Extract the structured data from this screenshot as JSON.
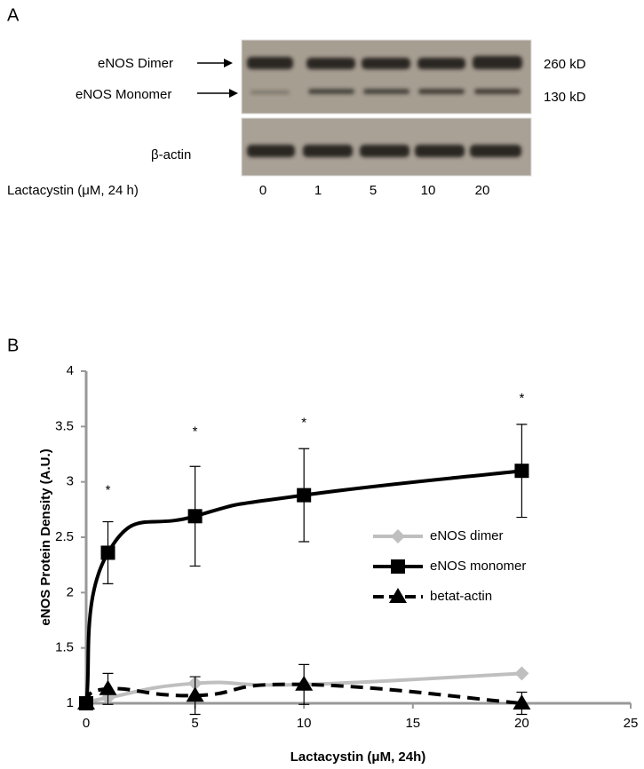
{
  "panel_a": {
    "letter": "A",
    "band_labels": [
      "eNOS Dimer",
      "eNOS Monomer",
      "β-actin"
    ],
    "sizes": [
      "260 kD",
      "130 kD"
    ],
    "treatment_label": "Lactacystin (μM, 24 h)",
    "lanes": [
      "0",
      "1",
      "5",
      "10",
      "20"
    ]
  },
  "chart_data": {
    "type": "line",
    "letter": "B",
    "xlabel": "Lactacystin  (μM, 24h)",
    "ylabel": "eNOS Protein Density (A.U.)",
    "x": [
      0,
      1,
      5,
      10,
      20
    ],
    "series": [
      {
        "name": "eNOS dimer",
        "color": "#bfbfbf",
        "marker": "diamond",
        "dash": false,
        "values": [
          1,
          1.05,
          1.18,
          1.17,
          1.27
        ]
      },
      {
        "name": "eNOS monomer",
        "color": "#000000",
        "marker": "square",
        "dash": false,
        "values": [
          1,
          2.36,
          2.69,
          2.88,
          3.1
        ],
        "errors": [
          0,
          0.28,
          0.45,
          0.42,
          0.42
        ]
      },
      {
        "name": "betat-actin",
        "color": "#000000",
        "marker": "triangle",
        "dash": true,
        "values": [
          1,
          1.13,
          1.07,
          1.17,
          1.0
        ],
        "errors": [
          0,
          0.14,
          0.17,
          0.18,
          0.1
        ]
      }
    ],
    "annotations": [
      {
        "text": "*",
        "x": 1,
        "y": 2.92
      },
      {
        "text": "*",
        "x": 5,
        "y": 3.45
      },
      {
        "text": "*",
        "x": 10,
        "y": 3.53
      },
      {
        "text": "*",
        "x": 20,
        "y": 3.75
      }
    ],
    "xlim": [
      0,
      25
    ],
    "xticks": [
      0,
      5,
      10,
      15,
      20,
      25
    ],
    "ylim": [
      1,
      4
    ],
    "yticks": [
      1,
      1.5,
      2,
      2.5,
      3,
      3.5,
      4
    ],
    "grid": false,
    "legend": "right"
  }
}
